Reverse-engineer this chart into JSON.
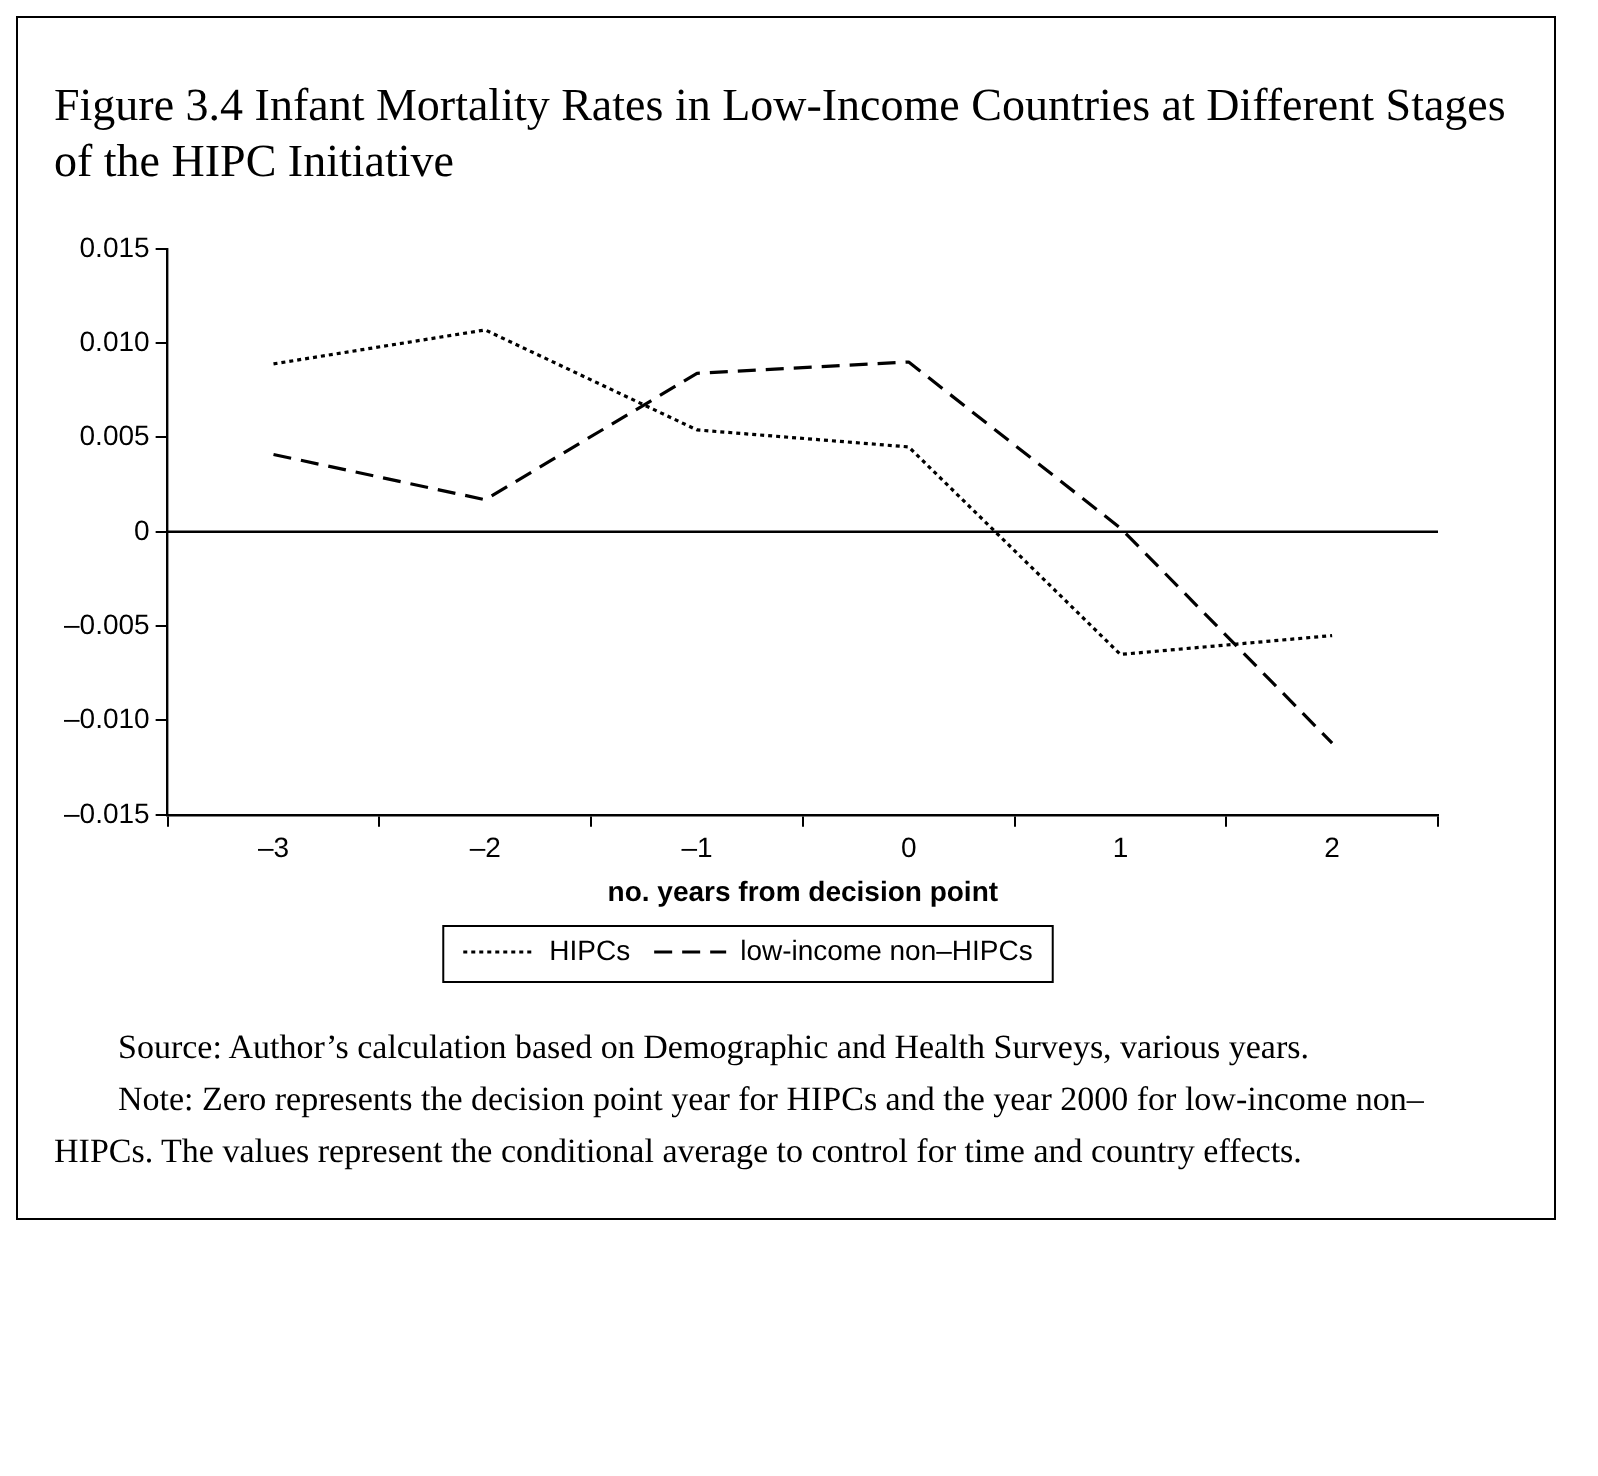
{
  "chart_data": {
    "type": "line",
    "title": "Figure 3.4 Infant Mortality Rates in Low-Income Countries at Different Stages of the HIPC Initiative",
    "xlabel": "no. years from decision point",
    "categories": [
      "–3",
      "–2",
      "–1",
      "0",
      "1",
      "2"
    ],
    "series": [
      {
        "name": "HIPCs",
        "color": "#000000",
        "line_style": "dotted",
        "values": [
          0.0089,
          0.0107,
          0.0054,
          0.0045,
          -0.0065,
          -0.0055
        ]
      },
      {
        "name": "low-income non–HIPCs",
        "color": "#000000",
        "line_style": "dashed",
        "values": [
          0.0041,
          0.0017,
          0.0084,
          0.009,
          0.0002,
          -0.0112
        ]
      }
    ],
    "ylim": [
      -0.015,
      0.015
    ],
    "yticks": [
      {
        "value": -0.015,
        "label": "–0.015"
      },
      {
        "value": -0.01,
        "label": "–0.010"
      },
      {
        "value": -0.005,
        "label": "–0.005"
      },
      {
        "value": 0,
        "label": "0"
      },
      {
        "value": 0.005,
        "label": "0.005"
      },
      {
        "value": 0.01,
        "label": "0.010"
      },
      {
        "value": 0.015,
        "label": "0.015"
      }
    ],
    "ref_lines": [
      {
        "axis": "y",
        "value": 0,
        "color": "#000000",
        "line_style": "solid"
      }
    ],
    "grid": false,
    "legend": "bottom",
    "marker": "none",
    "annotations": [
      "Source: Author’s calculation based on Demographic and Health Surveys, various years.",
      "Note: Zero represents the decision point year for HIPCs and the year 2000 for low-income non–HIPCs. The values represent the conditional average to control for time and country effects."
    ]
  }
}
